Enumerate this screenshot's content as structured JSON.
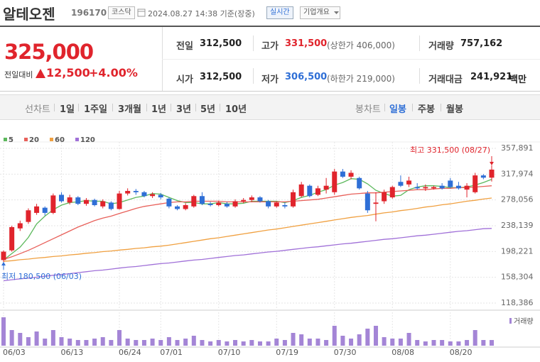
{
  "header": {
    "name": "알테오젠",
    "code": "196170",
    "market": "코스닥",
    "timestamp": "2024.08.27 14:38 기준(장중)",
    "realtime": "실시간",
    "company": "기업개요"
  },
  "quote": {
    "price": "325,000",
    "change_label": "전일대비",
    "change": "12,500",
    "change_pct": "+4.00%",
    "stats": [
      {
        "label": "전일",
        "value": "312,500"
      },
      {
        "label": "고가",
        "value": "331,500",
        "extra": "(상한가 406,000)"
      },
      {
        "label": "거래량",
        "value": "757,162"
      },
      {
        "label": "시가",
        "value": "312,500"
      },
      {
        "label": "저가",
        "value": "306,500",
        "extra": "(하한가 219,000)"
      },
      {
        "label": "거래대금",
        "value": "241,921",
        "unit": "백만"
      }
    ]
  },
  "tabs": {
    "line_chart": "선차트",
    "periods": [
      "1일",
      "1주일",
      "3개월",
      "1년",
      "3년",
      "5년",
      "10년"
    ],
    "candle_chart": "봉차트",
    "candles": [
      "일봉",
      "주봉",
      "월봉"
    ]
  },
  "chart_data": {
    "type": "candlestick",
    "categories": [
      "06/03",
      null,
      null,
      null,
      null,
      null,
      null,
      "06/13",
      null,
      null,
      null,
      null,
      null,
      null,
      "06/24",
      null,
      null,
      null,
      null,
      "07/01",
      null,
      null,
      null,
      null,
      null,
      null,
      "07/10",
      null,
      null,
      null,
      null,
      null,
      null,
      "07/19",
      null,
      null,
      null,
      null,
      null,
      null,
      "07/30",
      null,
      null,
      null,
      null,
      null,
      null,
      "08/08",
      null,
      null,
      null,
      null,
      null,
      null,
      "08/20",
      null,
      null,
      null,
      null,
      null
    ],
    "open": [
      185000,
      200000,
      234000,
      244000,
      258000,
      266000,
      258000,
      286000,
      274000,
      282000,
      272000,
      278000,
      268000,
      274000,
      264000,
      288000,
      292000,
      290000,
      284000,
      286000,
      280000,
      268000,
      264000,
      268000,
      284000,
      272000,
      270000,
      272000,
      268000,
      276000,
      278000,
      282000,
      276000,
      268000,
      270000,
      268000,
      284000,
      300000,
      286000,
      294000,
      290000,
      322000,
      314000,
      312000,
      288000,
      272000,
      276000,
      282000,
      306000,
      302000,
      298000,
      296000,
      296000,
      300000,
      308000,
      300000,
      294000,
      290000,
      316000,
      312500
    ],
    "high": [
      200000,
      238000,
      246000,
      265000,
      272000,
      268000,
      288000,
      290000,
      286000,
      284000,
      281000,
      280000,
      279000,
      276000,
      292000,
      296000,
      295000,
      292000,
      290000,
      289000,
      282000,
      270000,
      273000,
      286000,
      290000,
      275000,
      277000,
      275000,
      279000,
      281000,
      285000,
      284000,
      278000,
      276000,
      274000,
      294000,
      306000,
      302000,
      300000,
      312000,
      326000,
      326000,
      324000,
      314000,
      292000,
      290000,
      294000,
      300000,
      316000,
      314000,
      304000,
      302000,
      300000,
      304000,
      312000,
      306000,
      304000,
      320000,
      318000,
      331500
    ],
    "low": [
      180500,
      198000,
      230000,
      241000,
      255000,
      254000,
      256000,
      274000,
      271000,
      270000,
      269000,
      268000,
      265000,
      262000,
      263000,
      285000,
      286000,
      282000,
      281000,
      279000,
      265000,
      262000,
      262000,
      266000,
      270000,
      268000,
      268000,
      266000,
      266000,
      273000,
      275000,
      274000,
      265000,
      266000,
      265000,
      266000,
      282000,
      282000,
      284000,
      288000,
      286000,
      312000,
      310000,
      294000,
      258000,
      245000,
      272000,
      280000,
      298000,
      298000,
      294000,
      292000,
      294000,
      294000,
      296000,
      294000,
      282000,
      288000,
      310000,
      306500
    ],
    "close": [
      198000,
      236000,
      242000,
      262000,
      268000,
      258000,
      285000,
      276000,
      282000,
      272000,
      278000,
      270000,
      276000,
      264000,
      288000,
      292000,
      290000,
      284000,
      287000,
      282000,
      268000,
      264000,
      270000,
      284000,
      272000,
      270000,
      274000,
      268000,
      276000,
      278000,
      282000,
      276000,
      268000,
      274000,
      268000,
      290000,
      302000,
      284000,
      296000,
      300000,
      322000,
      314000,
      320000,
      296000,
      262000,
      274000,
      290000,
      298000,
      300000,
      308000,
      296000,
      298000,
      298000,
      296000,
      298000,
      296000,
      300000,
      316000,
      312500,
      325000
    ],
    "up_color": "#e0242c",
    "down_color": "#2f6fd6",
    "series": [
      {
        "name": "5",
        "color": "#5cb85c",
        "values": [
          185000,
          195000,
          205000,
          220000,
          241000,
          253000,
          263000,
          270000,
          274000,
          275000,
          277000,
          276000,
          276000,
          272000,
          274000,
          278000,
          282000,
          284000,
          288000,
          287000,
          282000,
          277000,
          274000,
          274000,
          272000,
          272000,
          274000,
          272000,
          272000,
          273000,
          276000,
          276000,
          276000,
          276000,
          274000,
          277000,
          282000,
          285000,
          290000,
          294000,
          301000,
          305000,
          311000,
          310000,
          303000,
          293000,
          288000,
          284000,
          285000,
          294000,
          298000,
          300000,
          300000,
          299000,
          297000,
          297000,
          298000,
          301000,
          305000,
          310000
        ]
      },
      {
        "name": "20",
        "color": "#e8605a",
        "values": [
          186000,
          190000,
          195000,
          200000,
          206000,
          212000,
          218000,
          224000,
          230000,
          236000,
          241000,
          246000,
          250000,
          253000,
          257000,
          261000,
          265000,
          268000,
          270000,
          272000,
          274000,
          275000,
          275000,
          276000,
          276000,
          276000,
          276000,
          275000,
          275000,
          275000,
          275000,
          275000,
          275000,
          275000,
          275000,
          276000,
          277000,
          278000,
          279000,
          281000,
          283000,
          285000,
          287000,
          288000,
          289000,
          289000,
          290000,
          291000,
          292000,
          293000,
          294000,
          294000,
          295000,
          296000,
          296000,
          297000,
          297000,
          298000,
          299000,
          300000
        ]
      },
      {
        "name": "60",
        "color": "#f0a040",
        "values": [
          183000,
          184000,
          185500,
          186500,
          188000,
          189000,
          190500,
          191500,
          193000,
          194000,
          195500,
          196500,
          198000,
          199000,
          200500,
          201500,
          203000,
          204000,
          205500,
          206500,
          208000,
          210000,
          212000,
          214000,
          216000,
          218000,
          219500,
          221500,
          223500,
          225500,
          227500,
          229500,
          231500,
          233000,
          235000,
          237000,
          239000,
          241000,
          243000,
          245000,
          247000,
          249000,
          251000,
          252500,
          254000,
          256000,
          258000,
          259500,
          261500,
          263000,
          265000,
          267000,
          268500,
          270500,
          272000,
          274000,
          276000,
          277500,
          279500,
          281000
        ]
      },
      {
        "name": "120",
        "color": "#a070d8",
        "values": [
          153000,
          154500,
          156000,
          157000,
          158500,
          160000,
          161500,
          162500,
          164000,
          165500,
          167000,
          168500,
          169500,
          171000,
          172500,
          174000,
          175000,
          176500,
          178000,
          179500,
          180500,
          182000,
          183500,
          185000,
          186000,
          187500,
          189000,
          190500,
          192000,
          193000,
          194500,
          196000,
          197500,
          198500,
          200000,
          201500,
          203000,
          204500,
          205500,
          207000,
          208500,
          210000,
          211000,
          212500,
          214000,
          215500,
          217000,
          218000,
          219500,
          221000,
          222500,
          223500,
          225000,
          226500,
          228000,
          229500,
          230500,
          232000,
          233500,
          234000
        ]
      }
    ],
    "volume": {
      "name": "거래량",
      "color": "#a485d6",
      "values": [
        3800000,
        2090000,
        1710000,
        1140000,
        1900000,
        950000,
        2090000,
        1140000,
        950000,
        760000,
        760000,
        950000,
        1140000,
        760000,
        2090000,
        950000,
        760000,
        760000,
        950000,
        760000,
        1140000,
        760000,
        950000,
        1330000,
        760000,
        570000,
        760000,
        570000,
        760000,
        570000,
        760000,
        570000,
        570000,
        950000,
        760000,
        1710000,
        1520000,
        950000,
        950000,
        760000,
        2660000,
        1330000,
        950000,
        1520000,
        2280000,
        2660000,
        1140000,
        950000,
        950000,
        1710000,
        760000,
        570000,
        760000,
        760000,
        570000,
        570000,
        760000,
        2090000,
        760000,
        757162
      ]
    },
    "ylim": [
      118386,
      357891
    ],
    "yticks": [
      {
        "value": 357891,
        "label": "357,891"
      },
      {
        "value": 317974,
        "label": "317,974"
      },
      {
        "value": 278056,
        "label": "278,056"
      },
      {
        "value": 238139,
        "label": "238,139"
      },
      {
        "value": 198221,
        "label": "198,221"
      },
      {
        "value": 158304,
        "label": "158,304"
      },
      {
        "value": 118386,
        "label": "118,386"
      }
    ],
    "grid": true,
    "annotations": {
      "high": "최고 331,500 (08/27)",
      "low": "최저 180,500 (06/03)"
    }
  }
}
